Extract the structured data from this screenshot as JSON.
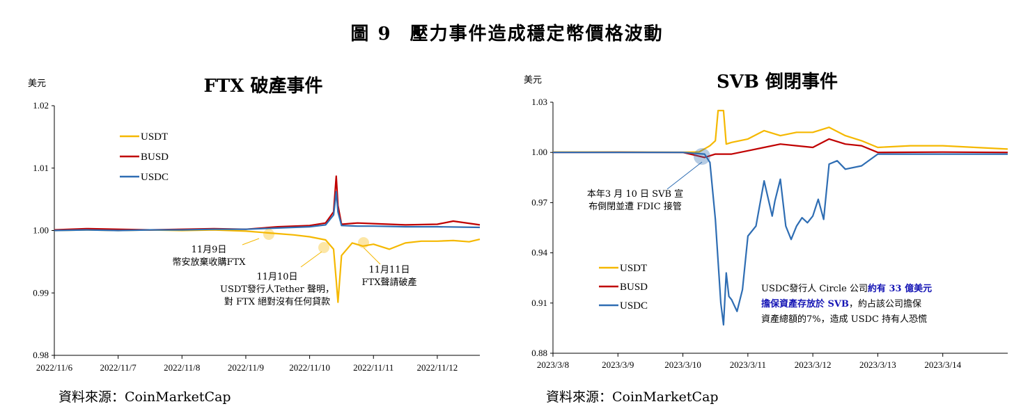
{
  "figure": {
    "number": "圖 9",
    "title": "壓力事件造成穩定幣價格波動"
  },
  "colors": {
    "USDT": "#f5b800",
    "BUSD": "#c00000",
    "USDC": "#2e6db3",
    "highlight_blue": "#1515b5"
  },
  "chart_data": [
    {
      "type": "line",
      "title": "FTX 破產事件",
      "unit": "美元",
      "ylim": [
        0.98,
        1.02
      ],
      "yticks": [
        "1.02",
        "1.01",
        "1.00",
        "0.99",
        "0.98"
      ],
      "xlim": [
        "2022/11/6",
        "2022/11/12 16:00"
      ],
      "xticks": [
        "2022/11/6",
        "2022/11/7",
        "2022/11/8",
        "2022/11/9",
        "2022/11/10",
        "2022/11/11",
        "2022/11/12"
      ],
      "legend": [
        "USDT",
        "BUSD",
        "USDC"
      ],
      "legend_position": "upper-left",
      "source": "資料來源：CoinMarketCap",
      "series": [
        {
          "name": "USDT",
          "x": [
            "2022/11/6",
            "2022/11/6 12:00",
            "2022/11/7",
            "2022/11/7 12:00",
            "2022/11/8",
            "2022/11/8 12:00",
            "2022/11/9",
            "2022/11/9 06:00",
            "2022/11/9 12:00",
            "2022/11/9 18:00",
            "2022/11/10",
            "2022/11/10 06:00",
            "2022/11/10 09:00",
            "2022/11/10 10:00",
            "2022/11/10 10:40",
            "2022/11/10 12:00",
            "2022/11/10 16:00",
            "2022/11/10 20:00",
            "2022/11/11",
            "2022/11/11 06:00",
            "2022/11/11 12:00",
            "2022/11/11 18:00",
            "2022/11/12",
            "2022/11/12 06:00",
            "2022/11/12 12:00",
            "2022/11/12 16:00"
          ],
          "values": [
            1.0,
            1.0001,
            1.0,
            1.0001,
            1.0,
            1.0001,
            0.9999,
            0.9997,
            0.9995,
            0.9993,
            0.999,
            0.9985,
            0.997,
            0.992,
            0.9885,
            0.996,
            0.998,
            0.9975,
            0.9978,
            0.997,
            0.998,
            0.9983,
            0.9983,
            0.9984,
            0.9982,
            0.9986
          ]
        },
        {
          "name": "BUSD",
          "x": [
            "2022/11/6",
            "2022/11/6 12:00",
            "2022/11/7",
            "2022/11/7 12:00",
            "2022/11/8",
            "2022/11/8 12:00",
            "2022/11/9",
            "2022/11/9 12:00",
            "2022/11/10",
            "2022/11/10 06:00",
            "2022/11/10 09:00",
            "2022/11/10 10:00",
            "2022/11/10 10:40",
            "2022/11/10 12:00",
            "2022/11/10 18:00",
            "2022/11/11",
            "2022/11/11 12:00",
            "2022/11/12",
            "2022/11/12 06:00",
            "2022/11/12 16:00"
          ],
          "values": [
            1.0001,
            1.0003,
            1.0002,
            1.0001,
            1.0002,
            1.0003,
            1.0002,
            1.0006,
            1.0008,
            1.0012,
            1.003,
            1.0087,
            1.004,
            1.001,
            1.0012,
            1.0011,
            1.0009,
            1.001,
            1.0015,
            1.0009
          ]
        },
        {
          "name": "USDC",
          "x": [
            "2022/11/6",
            "2022/11/6 12:00",
            "2022/11/7",
            "2022/11/7 12:00",
            "2022/11/8",
            "2022/11/8 12:00",
            "2022/11/9",
            "2022/11/9 12:00",
            "2022/11/10",
            "2022/11/10 06:00",
            "2022/11/10 09:00",
            "2022/11/10 10:00",
            "2022/11/10 10:40",
            "2022/11/10 12:00",
            "2022/11/10 18:00",
            "2022/11/11",
            "2022/11/11 12:00",
            "2022/11/12",
            "2022/11/12 16:00"
          ],
          "values": [
            1.0,
            1.0001,
            1.0,
            1.0001,
            1.0001,
            1.0002,
            1.0002,
            1.0004,
            1.0006,
            1.0009,
            1.0025,
            1.0062,
            1.003,
            1.0008,
            1.0007,
            1.0007,
            1.0006,
            1.0006,
            1.0005
          ]
        }
      ],
      "annotations": [
        {
          "lines": [
            "11月9日",
            "幣安放棄收購FTX"
          ],
          "at": "2022/11/9 06:00"
        },
        {
          "lines": [
            "11月10日",
            "USDT發行人Tether 聲明，",
            "對 FTX 絕對沒有任何貸款"
          ],
          "at": "2022/11/10 03:00"
        },
        {
          "lines": [
            "11月11日",
            "FTX聲請破產"
          ],
          "at": "2022/11/10 20:00"
        }
      ]
    },
    {
      "type": "line",
      "title": "SVB 倒閉事件",
      "unit": "美元",
      "ylim": [
        0.88,
        1.03
      ],
      "yticks": [
        "1.03",
        "1.00",
        "0.97",
        "0.94",
        "0.91",
        "0.88"
      ],
      "xlim": [
        "2023/3/8",
        "2023/3/15"
      ],
      "xticks": [
        "2023/3/8",
        "2023/3/9",
        "2023/3/10",
        "2023/3/11",
        "2023/3/12",
        "2023/3/13",
        "2023/3/14"
      ],
      "legend": [
        "USDT",
        "BUSD",
        "USDC"
      ],
      "legend_position": "lower-left",
      "source": "資料來源：CoinMarketCap",
      "series": [
        {
          "name": "USDT",
          "x": [
            "2023/3/8",
            "2023/3/9",
            "2023/3/10",
            "2023/3/10 06:00",
            "2023/3/10 10:00",
            "2023/3/10 12:00",
            "2023/3/10 13:00",
            "2023/3/10 15:00",
            "2023/3/10 16:00",
            "2023/3/10 18:00",
            "2023/3/11",
            "2023/3/11 06:00",
            "2023/3/11 12:00",
            "2023/3/11 18:00",
            "2023/3/12",
            "2023/3/12 06:00",
            "2023/3/12 12:00",
            "2023/3/12 18:00",
            "2023/3/13",
            "2023/3/13 12:00",
            "2023/3/14",
            "2023/3/14 12:00",
            "2023/3/15"
          ],
          "values": [
            1.0002,
            1.0002,
            1.0001,
            1.0003,
            1.004,
            1.007,
            1.025,
            1.025,
            1.005,
            1.006,
            1.008,
            1.013,
            1.01,
            1.012,
            1.012,
            1.015,
            1.01,
            1.007,
            1.003,
            1.004,
            1.004,
            1.003,
            1.002
          ]
        },
        {
          "name": "BUSD",
          "x": [
            "2023/3/8",
            "2023/3/9",
            "2023/3/10",
            "2023/3/10 08:00",
            "2023/3/10 12:00",
            "2023/3/10 18:00",
            "2023/3/11",
            "2023/3/11 06:00",
            "2023/3/11 12:00",
            "2023/3/11 18:00",
            "2023/3/12",
            "2023/3/12 06:00",
            "2023/3/12 12:00",
            "2023/3/12 18:00",
            "2023/3/13",
            "2023/3/14",
            "2023/3/15"
          ],
          "values": [
            1.0,
            1.0001,
            1.0,
            0.997,
            0.999,
            0.999,
            1.001,
            1.003,
            1.005,
            1.004,
            1.003,
            1.008,
            1.005,
            1.004,
            1.0,
            1.0002,
            1.0
          ]
        },
        {
          "name": "USDC",
          "x": [
            "2023/3/8",
            "2023/3/9",
            "2023/3/10",
            "2023/3/10 08:00",
            "2023/3/10 10:00",
            "2023/3/10 12:00",
            "2023/3/10 14:00",
            "2023/3/10 15:00",
            "2023/3/10 16:00",
            "2023/3/10 17:00",
            "2023/3/10 18:00",
            "2023/3/10 20:00",
            "2023/3/10 22:00",
            "2023/3/11",
            "2023/3/11 03:00",
            "2023/3/11 06:00",
            "2023/3/11 09:00",
            "2023/3/11 10:00",
            "2023/3/11 12:00",
            "2023/3/11 14:00",
            "2023/3/11 16:00",
            "2023/3/11 18:00",
            "2023/3/11 20:00",
            "2023/3/11 22:00",
            "2023/3/12",
            "2023/3/12 02:00",
            "2023/3/12 04:00",
            "2023/3/12 06:00",
            "2023/3/12 09:00",
            "2023/3/12 12:00",
            "2023/3/12 18:00",
            "2023/3/13",
            "2023/3/14",
            "2023/3/15"
          ],
          "values": [
            1.0,
            1.0,
            1.0,
            0.999,
            0.994,
            0.96,
            0.91,
            0.897,
            0.928,
            0.914,
            0.912,
            0.905,
            0.918,
            0.95,
            0.956,
            0.983,
            0.962,
            0.971,
            0.984,
            0.956,
            0.948,
            0.956,
            0.961,
            0.958,
            0.962,
            0.972,
            0.96,
            0.993,
            0.995,
            0.99,
            0.992,
            0.999,
            0.999,
            0.999
          ]
        }
      ],
      "annotations": [
        {
          "lines": [
            "本年3 月 10 日 SVB 宣",
            "布倒閉並遭 FDIC 接管"
          ],
          "at": "2023/3/10 06:00"
        },
        {
          "runs": [
            [
              {
                "t": "USDC發行人 Circle 公司",
                "b": false
              },
              {
                "t": "約有 33 億美元",
                "b": true
              }
            ],
            [
              {
                "t": "擔保資產存放於 SVB",
                "b": true
              },
              {
                "t": "，約占該公司擔保",
                "b": false
              }
            ],
            [
              {
                "t": "資產總額的7%，造成 USDC 持有人恐慌",
                "b": false
              }
            ]
          ]
        }
      ]
    }
  ]
}
